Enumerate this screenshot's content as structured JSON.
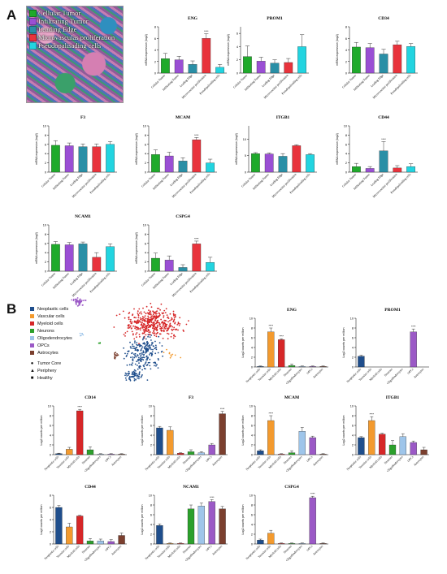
{
  "panel_labels": {
    "a": "A",
    "b": "B"
  },
  "section_a": {
    "histology_legend": [
      {
        "label": "Cellular Tumor",
        "color": "#1faa2b"
      },
      {
        "label": "Infiltrating Tumor",
        "color": "#9a4fd4"
      },
      {
        "label": "Leading Edge",
        "color": "#2a8fa6"
      },
      {
        "label": "Microvasculas proliferation",
        "color": "#e8333c"
      },
      {
        "label": "Pseudopalisading cells",
        "color": "#22d4e0"
      }
    ],
    "ylabel": "mRNA expression (log2)"
  },
  "section_b": {
    "cell_legend": [
      {
        "label": "Neoplastic cells",
        "color": "#1f4e8c"
      },
      {
        "label": "Vascular cells",
        "color": "#f39a2e"
      },
      {
        "label": "Myeloid cells",
        "color": "#d62728"
      },
      {
        "label": "Neurons",
        "color": "#2ca02c"
      },
      {
        "label": "Oligodendrocytes",
        "color": "#9ec5ea"
      },
      {
        "label": "OPCs",
        "color": "#9b59c6"
      },
      {
        "label": "Astrocytes",
        "color": "#7b3f2e"
      }
    ],
    "marker_legend": [
      {
        "symbol": "●",
        "label": "Tumor Core"
      },
      {
        "symbol": "▲",
        "label": "Periphery"
      },
      {
        "symbol": "■",
        "label": "Healthy"
      }
    ],
    "ylabel": "Log2 counts per million"
  },
  "chart_data": [
    {
      "type": "bar",
      "title": "ENG",
      "categories": [
        "Cellular Tumor",
        "Infiltrating Tumor",
        "Leading Edge",
        "Microvascular proliferation",
        "Pseudopalisading cells"
      ],
      "values": [
        2.5,
        2.3,
        1.5,
        6.0,
        1.0
      ],
      "errors": [
        0.9,
        0.6,
        0.6,
        0.8,
        0.5
      ],
      "ylim": [
        0,
        8
      ],
      "stars": [
        null,
        null,
        null,
        "****",
        null
      ],
      "colors": [
        "#1faa2b",
        "#9a4fd4",
        "#2a8fa6",
        "#e8333c",
        "#22d4e0"
      ]
    },
    {
      "type": "bar",
      "title": "PROM1",
      "categories": [
        "Cellular Tumor",
        "Infiltrating Tumor",
        "Leading Edge",
        "Microvascular proliferation",
        "Pseudopalisading cells"
      ],
      "values": [
        2.5,
        1.8,
        1.5,
        1.6,
        4.0
      ],
      "errors": [
        1.6,
        0.6,
        0.5,
        0.6,
        1.8
      ],
      "ylim": [
        0,
        7
      ],
      "stars": [
        null,
        null,
        null,
        null,
        null
      ],
      "colors": [
        "#1faa2b",
        "#9a4fd4",
        "#2a8fa6",
        "#e8333c",
        "#22d4e0"
      ]
    },
    {
      "type": "bar",
      "title": "CD34",
      "categories": [
        "Cellular Tumor",
        "Infiltrating Tumor",
        "Leading Edge",
        "Microvascular proliferation",
        "Pseudopalisading cells"
      ],
      "values": [
        4.5,
        4.4,
        3.3,
        4.9,
        4.6
      ],
      "errors": [
        0.8,
        0.7,
        0.8,
        0.6,
        0.5
      ],
      "ylim": [
        0,
        8
      ],
      "stars": [
        null,
        null,
        null,
        null,
        null
      ],
      "colors": [
        "#1faa2b",
        "#9a4fd4",
        "#2a8fa6",
        "#e8333c",
        "#22d4e0"
      ]
    },
    {
      "type": "bar",
      "title": "F3",
      "categories": [
        "Cellular Tumor",
        "Infiltrating Tumor",
        "Leading Edge",
        "Microvascular proliferation",
        "Pseudopalisading cells"
      ],
      "values": [
        5.8,
        5.7,
        5.5,
        5.5,
        6.0
      ],
      "errors": [
        1.0,
        0.6,
        0.6,
        0.6,
        0.6
      ],
      "ylim": [
        0,
        10
      ],
      "stars": [
        null,
        null,
        null,
        null,
        null
      ],
      "colors": [
        "#1faa2b",
        "#9a4fd4",
        "#2a8fa6",
        "#e8333c",
        "#22d4e0"
      ]
    },
    {
      "type": "bar",
      "title": "MCAM",
      "categories": [
        "Cellular Tumor",
        "Infiltrating Tumor",
        "Leading Edge",
        "Microvascular proliferation",
        "Pseudopalisading cells"
      ],
      "values": [
        3.8,
        3.5,
        2.4,
        7.0,
        2.0
      ],
      "errors": [
        1.0,
        0.8,
        0.7,
        0.5,
        0.8
      ],
      "ylim": [
        0,
        10
      ],
      "stars": [
        null,
        null,
        null,
        "****",
        null
      ],
      "colors": [
        "#1faa2b",
        "#9a4fd4",
        "#2a8fa6",
        "#e8333c",
        "#22d4e0"
      ]
    },
    {
      "type": "bar",
      "title": "ITGB1",
      "categories": [
        "Cellular Tumor",
        "Infiltrating Tumor",
        "Leading Edge",
        "Microvascular proliferation",
        "Pseudopalisading cells"
      ],
      "values": [
        5.6,
        5.5,
        4.8,
        8.0,
        5.3
      ],
      "errors": [
        0.3,
        0.3,
        0.8,
        0.3,
        0.3
      ],
      "ylim": [
        0,
        14
      ],
      "stars": [
        null,
        null,
        null,
        null,
        null
      ],
      "colors": [
        "#1faa2b",
        "#9a4fd4",
        "#2a8fa6",
        "#e8333c",
        "#22d4e0"
      ]
    },
    {
      "type": "bar",
      "title": "CD44",
      "categories": [
        "Cellular Tumor",
        "Infiltrating Tumor",
        "Leading Edge",
        "Microvascular proliferation",
        "Pseudopalisading cells"
      ],
      "values": [
        1.2,
        0.8,
        4.6,
        0.9,
        1.2
      ],
      "errors": [
        0.7,
        0.4,
        2.0,
        0.5,
        0.6
      ],
      "ylim": [
        0,
        10
      ],
      "stars": [
        null,
        null,
        "****",
        null,
        null
      ],
      "colors": [
        "#1faa2b",
        "#9a4fd4",
        "#2a8fa6",
        "#e8333c",
        "#22d4e0"
      ]
    },
    {
      "type": "bar",
      "title": "NCAM1",
      "categories": [
        "Cellular Tumor",
        "Infiltrating Tumor",
        "Leading Edge",
        "Microvascular proliferation",
        "Pseudopalisading cells"
      ],
      "values": [
        5.8,
        5.7,
        5.9,
        3.0,
        5.3
      ],
      "errors": [
        0.6,
        0.5,
        0.4,
        1.0,
        0.6
      ],
      "ylim": [
        0,
        10
      ],
      "stars": [
        null,
        null,
        null,
        null,
        null
      ],
      "colors": [
        "#1faa2b",
        "#9a4fd4",
        "#2a8fa6",
        "#e8333c",
        "#22d4e0"
      ]
    },
    {
      "type": "bar",
      "title": "CSPG4",
      "categories": [
        "Cellular Tumor",
        "Infiltrating Tumor",
        "Leading Edge",
        "Microvascular proliferation",
        "Pseudopalisading cells"
      ],
      "values": [
        2.8,
        2.4,
        0.8,
        5.9,
        1.9
      ],
      "errors": [
        1.1,
        0.9,
        0.6,
        0.6,
        1.1
      ],
      "ylim": [
        0,
        10
      ],
      "stars": [
        null,
        null,
        null,
        "****",
        null
      ],
      "colors": [
        "#1faa2b",
        "#9a4fd4",
        "#2a8fa6",
        "#e8333c",
        "#22d4e0"
      ]
    },
    {
      "type": "bar",
      "title": "ENG",
      "categories": [
        "Neoplastic cells",
        "Vascular cells",
        "Myeloid cells",
        "Neurons",
        "Oligodendrocytes",
        "OPCs",
        "Astrocytes"
      ],
      "values": [
        0.1,
        7.2,
        5.6,
        0.3,
        0.1,
        0.1,
        0.1
      ],
      "errors": [
        0.1,
        0.8,
        0.2,
        0.3,
        0.1,
        0.1,
        0.1
      ],
      "ylim": [
        0,
        10
      ],
      "stars": [
        null,
        "****",
        "****",
        null,
        null,
        null,
        null
      ],
      "colors": [
        "#1f4e8c",
        "#f39a2e",
        "#d62728",
        "#2ca02c",
        "#9ec5ea",
        "#9b59c6",
        "#7b3f2e"
      ]
    },
    {
      "type": "bar",
      "title": "PROM1",
      "categories": [
        "Neoplastic cells",
        "Vascular cells",
        "Myeloid cells",
        "Neurons",
        "Oligodendrocytes",
        "OPCs",
        "Astrocytes"
      ],
      "values": [
        2.2,
        0,
        0,
        0,
        0,
        7.2,
        0
      ],
      "errors": [
        0.2,
        0,
        0,
        0,
        0,
        0.6,
        0
      ],
      "ylim": [
        0,
        10
      ],
      "stars": [
        null,
        null,
        null,
        null,
        null,
        "****",
        null
      ],
      "colors": [
        "#1f4e8c",
        "#f39a2e",
        "#d62728",
        "#2ca02c",
        "#9ec5ea",
        "#9b59c6",
        "#7b3f2e"
      ]
    },
    {
      "type": "bar",
      "title": "CD14",
      "categories": [
        "Neoplastic cells",
        "Vascular cells",
        "Myeloid cells",
        "Neurons",
        "Oligodendrocytes",
        "OPCs",
        "Astrocytes"
      ],
      "values": [
        0.2,
        1.1,
        9.0,
        1.0,
        0.1,
        0.1,
        0.1
      ],
      "errors": [
        0.1,
        0.4,
        0.3,
        0.6,
        0.1,
        0.1,
        0.1
      ],
      "ylim": [
        0,
        10
      ],
      "stars": [
        null,
        null,
        "****",
        null,
        null,
        null,
        null
      ],
      "colors": [
        "#1f4e8c",
        "#f39a2e",
        "#d62728",
        "#2ca02c",
        "#9ec5ea",
        "#9b59c6",
        "#7b3f2e"
      ]
    },
    {
      "type": "bar",
      "title": "F3",
      "categories": [
        "Neoplastic cells",
        "Vascular cells",
        "Myeloid cells",
        "Neurons",
        "Oligodendrocytes",
        "OPCs",
        "Astrocytes"
      ],
      "values": [
        5.5,
        5.0,
        0.3,
        0.6,
        0.4,
        2.0,
        8.4
      ],
      "errors": [
        0.3,
        0.7,
        0.1,
        0.4,
        0.2,
        0.3,
        0.5
      ],
      "ylim": [
        0,
        10
      ],
      "stars": [
        null,
        null,
        null,
        null,
        null,
        null,
        "****"
      ],
      "colors": [
        "#1f4e8c",
        "#f39a2e",
        "#d62728",
        "#2ca02c",
        "#9ec5ea",
        "#9b59c6",
        "#7b3f2e"
      ]
    },
    {
      "type": "bar",
      "title": "MCAM",
      "categories": [
        "Neoplastic cells",
        "Vascular cells",
        "Myeloid cells",
        "Neurons",
        "Oligodendrocytes",
        "OPCs",
        "Astrocytes"
      ],
      "values": [
        0.8,
        7.0,
        0.1,
        0.4,
        4.8,
        3.5,
        0.1
      ],
      "errors": [
        0.2,
        1.0,
        0.1,
        0.4,
        0.8,
        0.3,
        0.1
      ],
      "ylim": [
        0,
        10
      ],
      "stars": [
        null,
        "****",
        null,
        null,
        null,
        null,
        null
      ],
      "colors": [
        "#1f4e8c",
        "#f39a2e",
        "#d62728",
        "#2ca02c",
        "#9ec5ea",
        "#9b59c6",
        "#7b3f2e"
      ]
    },
    {
      "type": "bar",
      "title": "ITGB1",
      "categories": [
        "Neoplastic cells",
        "Vascular cells",
        "Myeloid cells",
        "Neurons",
        "Oligodendrocytes",
        "OPCs",
        "Astrocytes"
      ],
      "values": [
        3.5,
        7.0,
        4.2,
        2.0,
        3.7,
        2.5,
        1.0
      ],
      "errors": [
        0.2,
        0.8,
        0.2,
        0.9,
        0.6,
        0.3,
        0.5
      ],
      "ylim": [
        0,
        10
      ],
      "stars": [
        null,
        "****",
        null,
        null,
        null,
        null,
        null
      ],
      "colors": [
        "#1f4e8c",
        "#f39a2e",
        "#d62728",
        "#2ca02c",
        "#9ec5ea",
        "#9b59c6",
        "#7b3f2e"
      ]
    },
    {
      "type": "bar",
      "title": "CD44",
      "categories": [
        "Neoplastic cells",
        "Vascular cells",
        "Myeloid cells",
        "Neurons",
        "Oligodendrocytes",
        "OPCs",
        "Astrocytes"
      ],
      "values": [
        6.0,
        2.8,
        4.6,
        0.5,
        0.5,
        0.4,
        1.4
      ],
      "errors": [
        0.3,
        0.6,
        0.1,
        0.4,
        0.3,
        0.3,
        0.4
      ],
      "ylim": [
        0,
        8
      ],
      "stars": [
        null,
        null,
        null,
        null,
        null,
        null,
        null
      ],
      "colors": [
        "#1f4e8c",
        "#f39a2e",
        "#d62728",
        "#2ca02c",
        "#9ec5ea",
        "#9b59c6",
        "#7b3f2e"
      ]
    },
    {
      "type": "bar",
      "title": "NCAM1",
      "categories": [
        "Neoplastic cells",
        "Vascular cells",
        "Myeloid cells",
        "Neurons",
        "Oligodendrocytes",
        "OPCs",
        "Astrocytes"
      ],
      "values": [
        3.8,
        0.1,
        0.1,
        7.2,
        7.8,
        8.7,
        7.2
      ],
      "errors": [
        0.3,
        0.1,
        0.1,
        0.8,
        0.6,
        0.4,
        0.5
      ],
      "ylim": [
        0,
        10
      ],
      "stars": [
        null,
        null,
        null,
        null,
        null,
        "****",
        null
      ],
      "colors": [
        "#1f4e8c",
        "#f39a2e",
        "#d62728",
        "#2ca02c",
        "#9ec5ea",
        "#9b59c6",
        "#7b3f2e"
      ]
    },
    {
      "type": "bar",
      "title": "CSPG4",
      "categories": [
        "Neoplastic cells",
        "Vascular cells",
        "Myeloid cells",
        "Neurons",
        "Oligodendrocytes",
        "OPCs",
        "Astrocytes"
      ],
      "values": [
        0.8,
        2.2,
        0.1,
        0.1,
        0.1,
        9.5,
        0.1
      ],
      "errors": [
        0.2,
        0.6,
        0.1,
        0.1,
        0.1,
        0.3,
        0.1
      ],
      "ylim": [
        0,
        10
      ],
      "stars": [
        null,
        null,
        null,
        null,
        null,
        "****",
        null
      ],
      "colors": [
        "#1f4e8c",
        "#f39a2e",
        "#d62728",
        "#2ca02c",
        "#9ec5ea",
        "#9b59c6",
        "#7b3f2e"
      ]
    }
  ]
}
